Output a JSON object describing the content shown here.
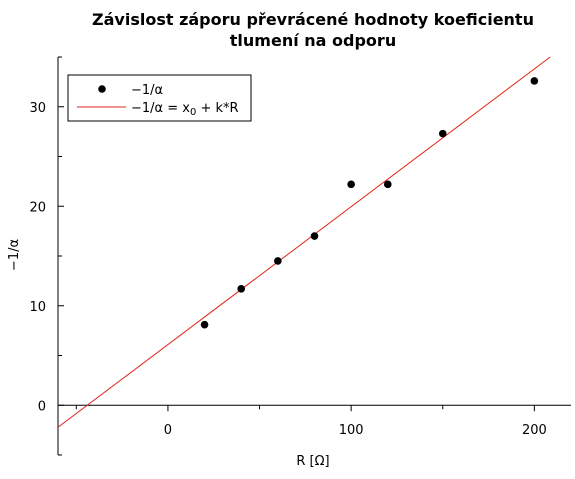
{
  "chart_data": {
    "type": "scatter",
    "title_line1": "Závislost záporu převrácené hodnoty koeficientu",
    "title_line2": "tlumení na odporu",
    "xlabel": "R [Ω]",
    "ylabel": "−1/α",
    "xlim": [
      -60,
      220
    ],
    "ylim": [
      -5,
      35
    ],
    "x_ticks": [
      0,
      100,
      200
    ],
    "y_ticks": [
      0,
      10,
      20,
      30
    ],
    "grid": false,
    "legend_position": "top-left",
    "series": [
      {
        "name": "−1/α",
        "kind": "points",
        "color": "#000000",
        "x": [
          20,
          40,
          60,
          80,
          100,
          120,
          150,
          200
        ],
        "y": [
          8.1,
          11.7,
          14.5,
          17.0,
          22.2,
          22.2,
          27.3,
          32.6
        ]
      },
      {
        "name_prefix": "−1/α = x",
        "name_sub": "0",
        "name_suffix": " + k*R",
        "kind": "fit",
        "color": "#e0251b",
        "intercept": 6.1,
        "slope": 0.1385
      }
    ]
  }
}
